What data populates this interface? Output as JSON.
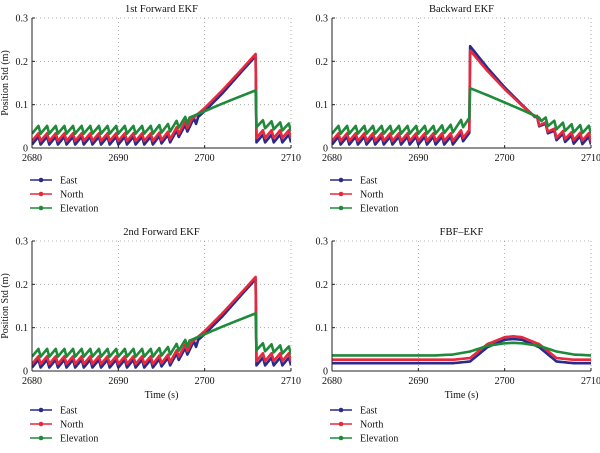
{
  "chart_data": [
    {
      "type": "line",
      "title": "1st Forward EKF",
      "ylabel": "Position Std (m)",
      "xlabel": "",
      "xlim": [
        2680,
        2710
      ],
      "ylim": [
        0,
        0.3
      ],
      "xticks": [
        2680,
        2690,
        2700,
        2710
      ],
      "yticks": [
        0,
        0.1,
        0.2,
        0.3
      ],
      "grid": true,
      "legend": "below-left",
      "series": [
        {
          "name": "East",
          "color": "#2a2a8c",
          "x": [
            2680,
            2682,
            2684,
            2686,
            2688,
            2690,
            2692,
            2694,
            2696,
            2698,
            2700,
            2702,
            2704,
            2705.9,
            2706,
            2708,
            2710
          ],
          "values": [
            0.02,
            0.02,
            0.02,
            0.02,
            0.02,
            0.02,
            0.02,
            0.02,
            0.025,
            0.05,
            0.085,
            0.125,
            0.17,
            0.212,
            0.025,
            0.025,
            0.025
          ]
        },
        {
          "name": "North",
          "color": "#e8283c",
          "x": [
            2680,
            2682,
            2684,
            2686,
            2688,
            2690,
            2692,
            2694,
            2696,
            2698,
            2700,
            2702,
            2704,
            2705.9,
            2706,
            2708,
            2710
          ],
          "values": [
            0.028,
            0.028,
            0.028,
            0.028,
            0.028,
            0.028,
            0.028,
            0.028,
            0.032,
            0.058,
            0.092,
            0.132,
            0.175,
            0.217,
            0.035,
            0.035,
            0.035
          ]
        },
        {
          "name": "Elevation",
          "color": "#1f8a3a",
          "x": [
            2680,
            2682,
            2684,
            2686,
            2688,
            2690,
            2692,
            2694,
            2696,
            2698,
            2700,
            2702,
            2704,
            2705.9,
            2706,
            2708,
            2710
          ],
          "values": [
            0.045,
            0.045,
            0.045,
            0.045,
            0.045,
            0.045,
            0.045,
            0.045,
            0.05,
            0.068,
            0.085,
            0.102,
            0.118,
            0.133,
            0.06,
            0.055,
            0.05
          ]
        }
      ]
    },
    {
      "type": "line",
      "title": "Backward EKF",
      "ylabel": "",
      "xlabel": "",
      "xlim": [
        2680,
        2710
      ],
      "ylim": [
        0,
        0.3
      ],
      "xticks": [
        2680,
        2690,
        2700,
        2710
      ],
      "yticks": [
        0,
        0.1,
        0.2,
        0.3
      ],
      "grid": true,
      "legend": "below-left",
      "series": [
        {
          "name": "East",
          "color": "#2a2a8c",
          "x": [
            2680,
            2682,
            2684,
            2686,
            2688,
            2690,
            2692,
            2694,
            2695.9,
            2696,
            2698,
            2700,
            2702,
            2704,
            2706,
            2708,
            2710
          ],
          "values": [
            0.02,
            0.02,
            0.02,
            0.02,
            0.02,
            0.02,
            0.02,
            0.02,
            0.025,
            0.235,
            0.185,
            0.14,
            0.1,
            0.062,
            0.03,
            0.022,
            0.02
          ]
        },
        {
          "name": "North",
          "color": "#e8283c",
          "x": [
            2680,
            2682,
            2684,
            2686,
            2688,
            2690,
            2692,
            2694,
            2695.9,
            2696,
            2698,
            2700,
            2702,
            2704,
            2706,
            2708,
            2710
          ],
          "values": [
            0.028,
            0.028,
            0.028,
            0.028,
            0.028,
            0.028,
            0.028,
            0.028,
            0.032,
            0.225,
            0.178,
            0.136,
            0.098,
            0.064,
            0.035,
            0.03,
            0.028
          ]
        },
        {
          "name": "Elevation",
          "color": "#1f8a3a",
          "x": [
            2680,
            2682,
            2684,
            2686,
            2688,
            2690,
            2692,
            2694,
            2695.9,
            2696,
            2698,
            2700,
            2702,
            2704,
            2706,
            2708,
            2710
          ],
          "values": [
            0.045,
            0.045,
            0.045,
            0.045,
            0.045,
            0.045,
            0.045,
            0.048,
            0.06,
            0.138,
            0.122,
            0.105,
            0.088,
            0.07,
            0.055,
            0.048,
            0.045
          ]
        }
      ]
    },
    {
      "type": "line",
      "title": "2nd Forward EKF",
      "ylabel": "Position Std (m)",
      "xlabel": "Time (s)",
      "xlim": [
        2680,
        2710
      ],
      "ylim": [
        0,
        0.3
      ],
      "xticks": [
        2680,
        2690,
        2700,
        2710
      ],
      "yticks": [
        0,
        0.1,
        0.2,
        0.3
      ],
      "grid": true,
      "legend": "below-left",
      "series": [
        {
          "name": "East",
          "color": "#2a2a8c",
          "x": [
            2680,
            2682,
            2684,
            2686,
            2688,
            2690,
            2692,
            2694,
            2696,
            2698,
            2700,
            2702,
            2704,
            2705.9,
            2706,
            2708,
            2710
          ],
          "values": [
            0.02,
            0.02,
            0.02,
            0.02,
            0.02,
            0.02,
            0.02,
            0.02,
            0.025,
            0.05,
            0.085,
            0.125,
            0.17,
            0.212,
            0.025,
            0.025,
            0.025
          ]
        },
        {
          "name": "North",
          "color": "#e8283c",
          "x": [
            2680,
            2682,
            2684,
            2686,
            2688,
            2690,
            2692,
            2694,
            2696,
            2698,
            2700,
            2702,
            2704,
            2705.9,
            2706,
            2708,
            2710
          ],
          "values": [
            0.028,
            0.028,
            0.028,
            0.028,
            0.028,
            0.028,
            0.028,
            0.028,
            0.032,
            0.058,
            0.092,
            0.132,
            0.175,
            0.217,
            0.035,
            0.035,
            0.035
          ]
        },
        {
          "name": "Elevation",
          "color": "#1f8a3a",
          "x": [
            2680,
            2682,
            2684,
            2686,
            2688,
            2690,
            2692,
            2694,
            2696,
            2698,
            2700,
            2702,
            2704,
            2705.9,
            2706,
            2708,
            2710
          ],
          "values": [
            0.045,
            0.045,
            0.045,
            0.045,
            0.045,
            0.045,
            0.045,
            0.045,
            0.05,
            0.068,
            0.085,
            0.102,
            0.118,
            0.133,
            0.06,
            0.055,
            0.05
          ]
        }
      ]
    },
    {
      "type": "line",
      "title": "FBF–EKF",
      "ylabel": "",
      "xlabel": "Time (s)",
      "xlim": [
        2680,
        2710
      ],
      "ylim": [
        0,
        0.3
      ],
      "xticks": [
        2680,
        2690,
        2700,
        2710
      ],
      "yticks": [
        0,
        0.1,
        0.2,
        0.3
      ],
      "grid": true,
      "legend": "below-left",
      "series": [
        {
          "name": "East",
          "color": "#2a2a8c",
          "x": [
            2680,
            2682,
            2684,
            2686,
            2688,
            2690,
            2692,
            2694,
            2696,
            2698,
            2700,
            2701,
            2702,
            2704,
            2706,
            2708,
            2710
          ],
          "values": [
            0.018,
            0.018,
            0.018,
            0.018,
            0.018,
            0.018,
            0.018,
            0.018,
            0.022,
            0.055,
            0.072,
            0.074,
            0.072,
            0.055,
            0.022,
            0.018,
            0.018
          ]
        },
        {
          "name": "North",
          "color": "#e8283c",
          "x": [
            2680,
            2682,
            2684,
            2686,
            2688,
            2690,
            2692,
            2694,
            2696,
            2698,
            2700,
            2701,
            2702,
            2704,
            2706,
            2708,
            2710
          ],
          "values": [
            0.026,
            0.026,
            0.026,
            0.026,
            0.026,
            0.026,
            0.026,
            0.026,
            0.03,
            0.062,
            0.078,
            0.08,
            0.078,
            0.062,
            0.03,
            0.026,
            0.026
          ]
        },
        {
          "name": "Elevation",
          "color": "#1f8a3a",
          "x": [
            2680,
            2682,
            2684,
            2686,
            2688,
            2690,
            2692,
            2694,
            2696,
            2698,
            2700,
            2701,
            2702,
            2704,
            2706,
            2708,
            2710
          ],
          "values": [
            0.036,
            0.036,
            0.036,
            0.036,
            0.036,
            0.036,
            0.036,
            0.038,
            0.045,
            0.058,
            0.064,
            0.065,
            0.064,
            0.058,
            0.045,
            0.038,
            0.036
          ]
        }
      ]
    }
  ]
}
